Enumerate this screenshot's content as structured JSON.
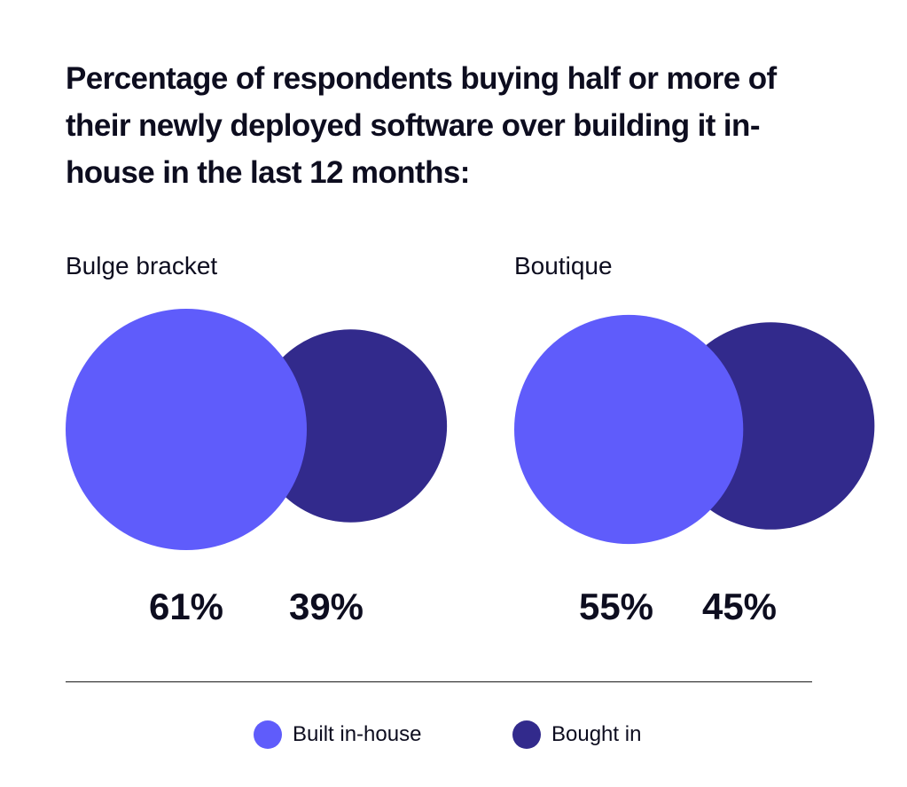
{
  "chart_data": {
    "type": "bubble",
    "title": "Percentage of respondents buying  half or more of their newly deployed software over building it in-house in the last 12 months:",
    "legend": {
      "placement": "bottom",
      "entries": [
        {
          "label": "Built in-house",
          "color": "#5f5cfb"
        },
        {
          "label": "Bought in",
          "color": "#322a8c"
        }
      ]
    },
    "groups": [
      {
        "name": "Bulge bracket",
        "values": [
          {
            "series": "Built in-house",
            "value": 61,
            "label": "61%"
          },
          {
            "series": "Bought in",
            "value": 39,
            "label": "39%"
          }
        ]
      },
      {
        "name": "Boutique",
        "values": [
          {
            "series": "Built in-house",
            "value": 55,
            "label": "55%"
          },
          {
            "series": "Bought in",
            "value": 45,
            "label": "45%"
          }
        ]
      }
    ]
  }
}
